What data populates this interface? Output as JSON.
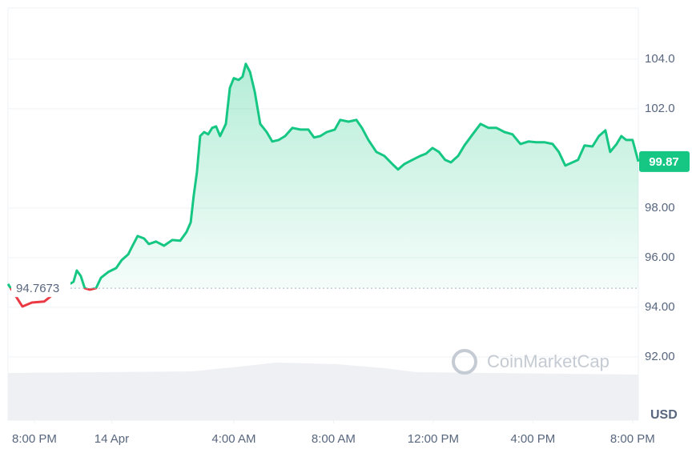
{
  "chart_data": {
    "type": "line",
    "x": [
      -1.06,
      -0.48,
      -0.1,
      0.39,
      0.87,
      1.57,
      1.7,
      1.86,
      2.02,
      2.22,
      2.47,
      2.67,
      2.96,
      3.28,
      3.5,
      3.76,
      3.92,
      4.14,
      4.4,
      4.59,
      4.88,
      5.2,
      5.53,
      5.85,
      6.1,
      6.27,
      6.39,
      6.52,
      6.65,
      6.81,
      6.97,
      7.13,
      7.29,
      7.45,
      7.68,
      7.84,
      8.0,
      8.19,
      8.35,
      8.48,
      8.65,
      8.84,
      9.06,
      9.32,
      9.54,
      9.8,
      10.06,
      10.35,
      10.67,
      10.99,
      11.22,
      11.47,
      11.73,
      12.05,
      12.27,
      12.6,
      12.92,
      13.14,
      13.4,
      13.72,
      14.04,
      14.36,
      14.59,
      14.84,
      15.16,
      15.48,
      15.71,
      15.97,
      16.23,
      16.48,
      16.71,
      17.0,
      17.25,
      17.58,
      17.9,
      18.22,
      18.54,
      18.86,
      19.18,
      19.5,
      19.82,
      20.14,
      20.46,
      20.79,
      21.04,
      21.3,
      21.59,
      21.81,
      22.07,
      22.39,
      22.65,
      22.91,
      23.1,
      23.36,
      23.55,
      23.74,
      24.0,
      24.23
    ],
    "series": [
      {
        "color": "#16c784",
        "below_color": "#ea3943",
        "values": [
          94.94,
          94.03,
          94.19,
          94.23,
          94.61,
          95.03,
          95.48,
          95.26,
          94.77,
          94.71,
          94.77,
          95.19,
          95.42,
          95.58,
          95.9,
          96.13,
          96.45,
          96.87,
          96.77,
          96.55,
          96.65,
          96.48,
          96.71,
          96.68,
          97.03,
          97.42,
          98.48,
          99.45,
          100.9,
          101.06,
          100.97,
          101.23,
          101.29,
          100.9,
          101.39,
          102.84,
          103.23,
          103.16,
          103.29,
          103.81,
          103.48,
          102.68,
          101.39,
          101.06,
          100.68,
          100.74,
          100.9,
          101.23,
          101.16,
          101.16,
          100.84,
          100.9,
          101.06,
          101.16,
          101.55,
          101.48,
          101.55,
          101.23,
          100.74,
          100.26,
          100.1,
          99.77,
          99.55,
          99.77,
          99.94,
          100.1,
          100.19,
          100.42,
          100.26,
          99.94,
          99.84,
          100.1,
          100.52,
          100.97,
          101.39,
          101.23,
          101.23,
          101.06,
          100.97,
          100.58,
          100.68,
          100.65,
          100.65,
          100.58,
          100.26,
          99.71,
          99.84,
          99.94,
          100.52,
          100.48,
          100.9,
          101.13,
          100.26,
          100.58,
          100.9,
          100.74,
          100.74,
          99.87
        ]
      }
    ],
    "baseline": 94.7673,
    "last_price": 99.87,
    "currency": "USD",
    "watermark": "CoinMarketCap",
    "xlim": [
      -1.06,
      24.23
    ],
    "ylim": [
      89.45,
      106.06
    ],
    "xticks": [
      {
        "value": 0,
        "label": "8:00 PM"
      },
      {
        "value": 3.1,
        "label": "14 Apr"
      },
      {
        "value": 8,
        "label": "4:00 AM"
      },
      {
        "value": 12,
        "label": "8:00 AM"
      },
      {
        "value": 16,
        "label": "12:00 PM"
      },
      {
        "value": 20,
        "label": "4:00 PM"
      },
      {
        "value": 24,
        "label": "8:00 PM"
      }
    ],
    "yticks": [
      {
        "value": 92,
        "label": "92.00"
      },
      {
        "value": 94,
        "label": "94.00"
      },
      {
        "value": 96,
        "label": "96.00"
      },
      {
        "value": 98,
        "label": "98.00"
      },
      {
        "value": 102,
        "label": "102.0"
      },
      {
        "value": 104,
        "label": "104.0"
      }
    ]
  }
}
